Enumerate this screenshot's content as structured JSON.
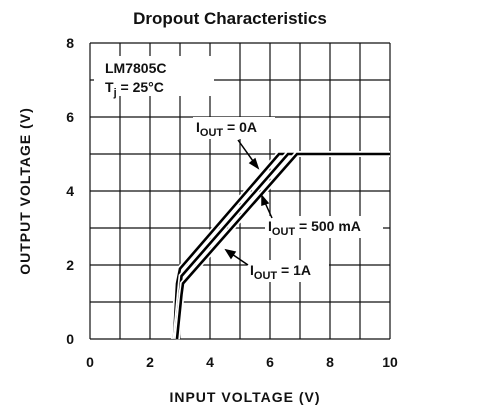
{
  "chart_data": {
    "type": "line",
    "title": "Dropout Characteristics",
    "xlabel": "INPUT VOLTAGE (V)",
    "ylabel": "OUTPUT VOLTAGE (V)",
    "xlim": [
      0,
      10
    ],
    "ylim": [
      0,
      8
    ],
    "xticks": [
      0,
      2,
      4,
      6,
      8,
      10
    ],
    "yticks": [
      0,
      2,
      4,
      6,
      8
    ],
    "xminorticks": [
      1,
      3,
      5,
      7,
      9
    ],
    "yminorticks": [
      1,
      3,
      5,
      7
    ],
    "grid": true,
    "series": [
      {
        "color": "#000000",
        "x": [
          2.8,
          2.9,
          3.0,
          6.3,
          10
        ],
        "values": [
          0,
          1.5,
          1.9,
          5,
          5
        ]
      },
      {
        "color": "#000000",
        "x": [
          2.85,
          3.0,
          3.05,
          6.6,
          10
        ],
        "values": [
          0,
          1.3,
          1.7,
          5,
          5
        ]
      },
      {
        "color": "#000000",
        "x": [
          2.9,
          3.05,
          3.1,
          6.9,
          10
        ],
        "values": [
          0,
          1.2,
          1.5,
          5,
          5
        ]
      }
    ],
    "part_number": "LM7805C",
    "condition": {
      "text": "T",
      "sub": "j",
      "rest": " = 25°C"
    },
    "annotations": [
      {
        "text": "I",
        "sub": "OUT",
        "rest": " = 0A"
      },
      {
        "text": "I",
        "sub": "OUT",
        "rest": " = 500 mA"
      },
      {
        "text": "I",
        "sub": "OUT",
        "rest": " = 1A"
      }
    ]
  }
}
